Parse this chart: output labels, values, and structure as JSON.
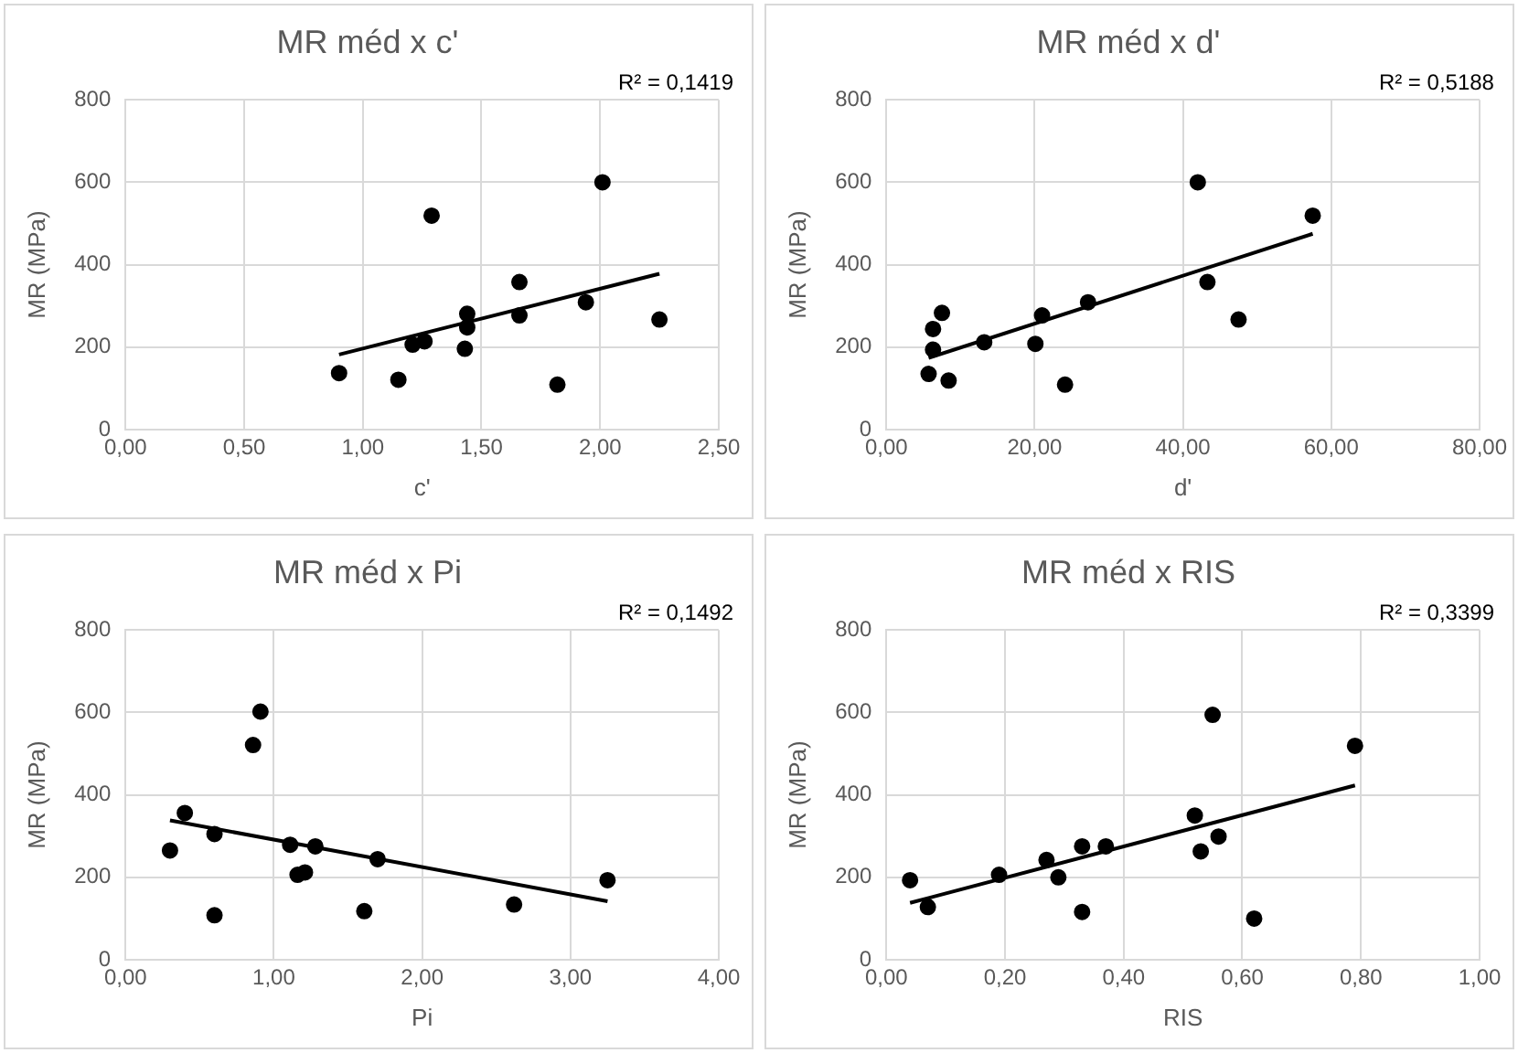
{
  "chart_data": [
    {
      "type": "scatter",
      "title": "MR méd x c'",
      "xlabel": "c'",
      "ylabel": "MR (MPa)",
      "annotations": [
        "R² = 0,1419"
      ],
      "xlim": [
        0,
        2.5
      ],
      "xticks": [
        {
          "value": 0,
          "label": "0,00"
        },
        {
          "value": 0.5,
          "label": "0,50"
        },
        {
          "value": 1,
          "label": "1,00"
        },
        {
          "value": 1.5,
          "label": "1,50"
        },
        {
          "value": 2,
          "label": "2,00"
        },
        {
          "value": 2.5,
          "label": "2,50"
        }
      ],
      "ylim": [
        0,
        800
      ],
      "yticks": [
        0,
        200,
        400,
        600,
        800
      ],
      "grid": true,
      "legend": false,
      "marker": "circle",
      "series": [
        {
          "color": "#000000",
          "x": [
            0.9,
            1.15,
            1.21,
            1.26,
            1.29,
            1.43,
            1.44,
            1.44,
            1.66,
            1.66,
            1.82,
            1.94,
            2.01,
            2.25
          ],
          "values": [
            137,
            121,
            206,
            214,
            519,
            196,
            281,
            248,
            358,
            277,
            109,
            309,
            600,
            267
          ]
        },
        {
          "type": "line",
          "marker": "none",
          "color": "#000000",
          "x": [
            0.9,
            2.25
          ],
          "values": [
            182,
            378
          ]
        }
      ]
    },
    {
      "type": "scatter",
      "title": "MR méd x d'",
      "xlabel": "d'",
      "ylabel": "MR (MPa)",
      "annotations": [
        "R² = 0,5188"
      ],
      "xlim": [
        0,
        80
      ],
      "xticks": [
        {
          "value": 0,
          "label": "0,00"
        },
        {
          "value": 20,
          "label": "20,00"
        },
        {
          "value": 40,
          "label": "40,00"
        },
        {
          "value": 60,
          "label": "60,00"
        },
        {
          "value": 80,
          "label": "80,00"
        }
      ],
      "ylim": [
        0,
        800
      ],
      "yticks": [
        0,
        200,
        400,
        600,
        800
      ],
      "grid": true,
      "legend": false,
      "marker": "circle",
      "series": [
        {
          "color": "#000000",
          "x": [
            5.7,
            6.3,
            6.3,
            7.5,
            8.4,
            13.2,
            20.1,
            21.0,
            24.1,
            27.2,
            42.0,
            43.3,
            47.5,
            57.5
          ],
          "values": [
            135,
            194,
            244,
            283,
            119,
            212,
            208,
            277,
            109,
            309,
            600,
            358,
            267,
            519
          ]
        },
        {
          "type": "line",
          "marker": "none",
          "color": "#000000",
          "x": [
            5.7,
            57.5
          ],
          "values": [
            174,
            475
          ]
        }
      ]
    },
    {
      "type": "scatter",
      "title": "MR méd x Pi",
      "xlabel": "Pi",
      "ylabel": "MR (MPa)",
      "annotations": [
        "R² = 0,1492"
      ],
      "xlim": [
        0,
        4
      ],
      "xticks": [
        {
          "value": 0,
          "label": "0,00"
        },
        {
          "value": 1,
          "label": "1,00"
        },
        {
          "value": 2,
          "label": "2,00"
        },
        {
          "value": 3,
          "label": "3,00"
        },
        {
          "value": 4,
          "label": "4,00"
        }
      ],
      "ylim": [
        0,
        800
      ],
      "yticks": [
        0,
        200,
        400,
        600,
        800
      ],
      "grid": true,
      "legend": false,
      "marker": "circle",
      "series": [
        {
          "color": "#000000",
          "x": [
            0.3,
            0.4,
            0.6,
            0.6,
            0.86,
            0.91,
            1.11,
            1.16,
            1.21,
            1.28,
            1.61,
            1.7,
            2.62,
            3.25
          ],
          "values": [
            265,
            356,
            305,
            108,
            521,
            602,
            279,
            206,
            212,
            275,
            118,
            244,
            134,
            193
          ]
        },
        {
          "type": "line",
          "marker": "none",
          "color": "#000000",
          "x": [
            0.3,
            3.25
          ],
          "values": [
            338,
            142
          ]
        }
      ]
    },
    {
      "type": "scatter",
      "title": "MR méd x RIS",
      "xlabel": "RIS",
      "ylabel": "MR (MPa)",
      "annotations": [
        "R² = 0,3399"
      ],
      "xlim": [
        0,
        1
      ],
      "xticks": [
        {
          "value": 0,
          "label": "0,00"
        },
        {
          "value": 0.2,
          "label": "0,20"
        },
        {
          "value": 0.4,
          "label": "0,40"
        },
        {
          "value": 0.6,
          "label": "0,60"
        },
        {
          "value": 0.8,
          "label": "0,80"
        },
        {
          "value": 1,
          "label": "1,00"
        }
      ],
      "ylim": [
        0,
        800
      ],
      "yticks": [
        0,
        200,
        400,
        600,
        800
      ],
      "grid": true,
      "legend": false,
      "marker": "circle",
      "series": [
        {
          "color": "#000000",
          "x": [
            0.04,
            0.07,
            0.19,
            0.27,
            0.29,
            0.33,
            0.33,
            0.37,
            0.52,
            0.53,
            0.55,
            0.56,
            0.62,
            0.79
          ],
          "values": [
            193,
            128,
            206,
            242,
            200,
            116,
            275,
            275,
            350,
            263,
            594,
            299,
            100,
            519
          ]
        },
        {
          "type": "line",
          "marker": "none",
          "color": "#000000",
          "x": [
            0.04,
            0.79
          ],
          "values": [
            138,
            423
          ]
        }
      ]
    }
  ]
}
